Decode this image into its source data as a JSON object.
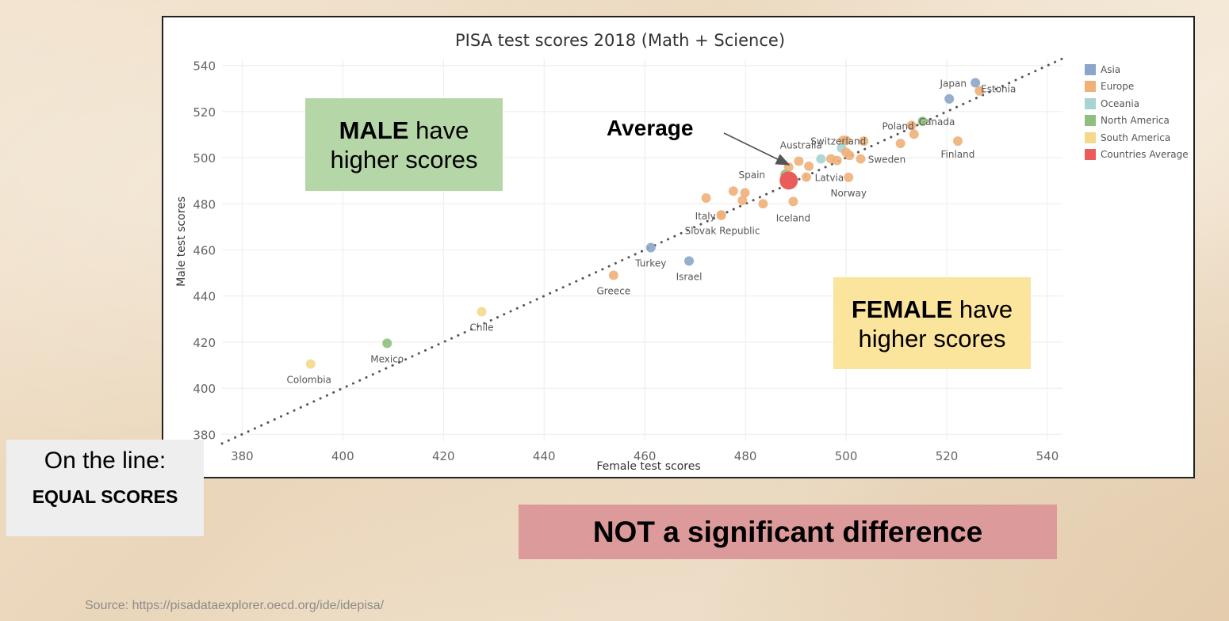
{
  "chart_data": {
    "type": "scatter",
    "title": "PISA test scores 2018 (Math + Science)",
    "xlabel": "Female test scores",
    "ylabel": "Male test scores",
    "xlim": [
      376,
      543
    ],
    "ylim": [
      377,
      543
    ],
    "x_ticks": [
      380,
      400,
      420,
      440,
      460,
      480,
      500,
      520,
      540
    ],
    "y_ticks": [
      380,
      400,
      420,
      440,
      460,
      480,
      500,
      520,
      540
    ],
    "grid": true,
    "legend_position": "right",
    "legend": [
      {
        "name": "Asia",
        "color": "#8ba6c8"
      },
      {
        "name": "Europe",
        "color": "#f0b07a"
      },
      {
        "name": "Oceania",
        "color": "#a7d3d0"
      },
      {
        "name": "North America",
        "color": "#8fbf7e"
      },
      {
        "name": "South America",
        "color": "#f4d98a"
      },
      {
        "name": "Countries Average",
        "color": "#ea5b5b"
      }
    ],
    "reference_line": {
      "style": "dotted",
      "from": [
        376,
        376
      ],
      "to": [
        543,
        543
      ]
    },
    "points": [
      {
        "label": "Japan",
        "x": 525.7,
        "y": 532.5,
        "group": "Asia"
      },
      {
        "label": "",
        "x": 520.5,
        "y": 525.5,
        "group": "Asia"
      },
      {
        "label": "Estonia",
        "x": 526.5,
        "y": 529.0,
        "group": "Europe"
      },
      {
        "label": "Canada",
        "x": 515.2,
        "y": 515.8,
        "group": "North America"
      },
      {
        "label": "Poland",
        "x": 513.0,
        "y": 514.0,
        "group": "Europe"
      },
      {
        "label": "",
        "x": 513.5,
        "y": 510.2,
        "group": "Europe"
      },
      {
        "label": "",
        "x": 510.8,
        "y": 506.2,
        "group": "Europe"
      },
      {
        "label": "Finland",
        "x": 522.2,
        "y": 507.2,
        "group": "Europe"
      },
      {
        "label": "Switzerland",
        "x": 499.4,
        "y": 507.5,
        "group": "Europe"
      },
      {
        "label": "",
        "x": 503.5,
        "y": 507.2,
        "group": "Europe"
      },
      {
        "label": "",
        "x": 500.0,
        "y": 507.5,
        "group": "Europe"
      },
      {
        "label": "Australia",
        "x": 495.0,
        "y": 499.5,
        "group": "Oceania"
      },
      {
        "label": "",
        "x": 499.1,
        "y": 504.2,
        "group": "Oceania"
      },
      {
        "label": "",
        "x": 500.0,
        "y": 502.3,
        "group": "Europe"
      },
      {
        "label": "",
        "x": 500.7,
        "y": 501.0,
        "group": "Europe"
      },
      {
        "label": "",
        "x": 497.0,
        "y": 499.5,
        "group": "Europe"
      },
      {
        "label": "",
        "x": 498.2,
        "y": 498.8,
        "group": "Europe"
      },
      {
        "label": "Sweden",
        "x": 502.9,
        "y": 499.5,
        "group": "Europe"
      },
      {
        "label": "",
        "x": 490.6,
        "y": 498.5,
        "group": "Europe"
      },
      {
        "label": "",
        "x": 492.6,
        "y": 496.3,
        "group": "Europe"
      },
      {
        "label": "",
        "x": 488.6,
        "y": 495.9,
        "group": "Europe"
      },
      {
        "label": "Latvia",
        "x": 492.1,
        "y": 491.6,
        "group": "Europe"
      },
      {
        "label": "Norway",
        "x": 500.5,
        "y": 491.5,
        "group": "Europe"
      },
      {
        "label": "Spain",
        "x": 487.9,
        "y": 492.8,
        "group": "North America"
      },
      {
        "label": "Average",
        "x": 488.6,
        "y": 490.1,
        "group": "Countries Average"
      },
      {
        "label": "",
        "x": 477.6,
        "y": 485.5,
        "group": "Europe"
      },
      {
        "label": "",
        "x": 479.9,
        "y": 484.8,
        "group": "Europe"
      },
      {
        "label": "",
        "x": 472.2,
        "y": 482.5,
        "group": "Europe"
      },
      {
        "label": "",
        "x": 479.4,
        "y": 481.5,
        "group": "Europe"
      },
      {
        "label": "",
        "x": 483.5,
        "y": 480.0,
        "group": "Europe"
      },
      {
        "label": "Iceland",
        "x": 489.5,
        "y": 481.0,
        "group": "Europe"
      },
      {
        "label": "Italy",
        "x": 475.2,
        "y": 475.0,
        "group": "Europe"
      },
      {
        "label": "Slovak Republic",
        "x": 475.2,
        "y": 475.2,
        "group": "Europe"
      },
      {
        "label": "Turkey",
        "x": 461.2,
        "y": 461.0,
        "group": "Asia"
      },
      {
        "label": "Israel",
        "x": 468.8,
        "y": 455.2,
        "group": "Asia"
      },
      {
        "label": "Greece",
        "x": 453.8,
        "y": 449.0,
        "group": "Europe"
      },
      {
        "label": "Chile",
        "x": 427.6,
        "y": 433.2,
        "group": "South America"
      },
      {
        "label": "Mexico",
        "x": 408.8,
        "y": 419.5,
        "group": "North America"
      },
      {
        "label": "Colombia",
        "x": 393.6,
        "y": 410.5,
        "group": "South America"
      }
    ]
  },
  "annotations": {
    "male_strong": "MALE",
    "male_rest": " have",
    "male_line2": "higher scores",
    "female_strong": "FEMALE",
    "female_rest": " have",
    "female_line2": "higher scores",
    "equal_line1": "On the line:",
    "equal_line2": "EQUAL SCORES",
    "significance": "NOT a significant difference",
    "average_label": "Average"
  },
  "source": "Source: https://pisadataexplorer.oecd.org/ide/idepisa/"
}
